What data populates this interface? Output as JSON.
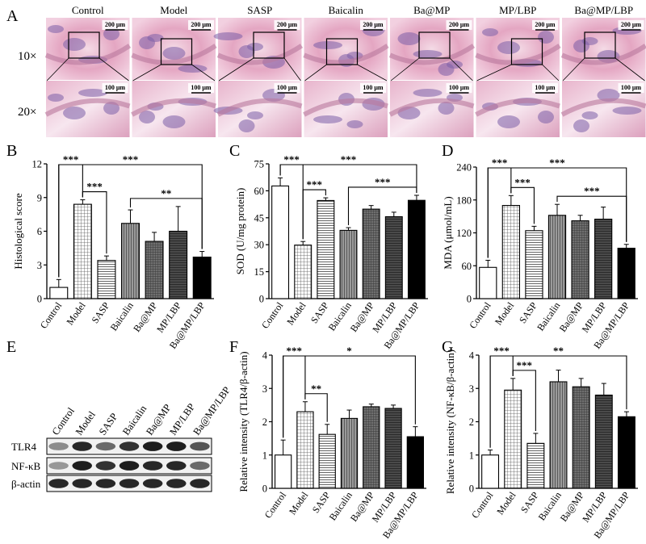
{
  "panel_a": {
    "letter": "A",
    "columns": [
      "Control",
      "Model",
      "SASP",
      "Baicalin",
      "Ba@MP",
      "MP/LBP",
      "Ba@MP/LBP"
    ],
    "row_labels": [
      "10×",
      "20×"
    ],
    "scale_10x": "200 μm",
    "scale_20x": "100 μm"
  },
  "blot": {
    "letter": "E",
    "columns": [
      "Control",
      "Model",
      "SASP",
      "Baicalin",
      "Ba@MP",
      "MP/LBP",
      "Ba@MP/LBP"
    ],
    "rows": [
      "TLR4",
      "NF-κB",
      "β-actin"
    ]
  },
  "colors": {
    "bar_border": "#000000",
    "background": "#ffffff",
    "tissue_pink": "#e6a8c0",
    "tissue_purple": "#7b5fa8"
  },
  "chart_data": [
    {
      "id": "B",
      "type": "bar",
      "title": "",
      "xlabel": "",
      "ylabel": "Histological score",
      "ylim": [
        0,
        12
      ],
      "yticks": [
        "0",
        "3",
        "6",
        "9",
        "12"
      ],
      "categories": [
        "Control",
        "Model",
        "SASP",
        "Baicalin",
        "Ba@MP",
        "MP/LBP",
        "Ba@MP/LBP"
      ],
      "values": [
        1.0,
        8.4,
        3.4,
        6.7,
        5.1,
        6.0,
        3.7
      ],
      "errors": [
        0.7,
        0.4,
        0.4,
        1.2,
        0.8,
        2.2,
        0.5
      ],
      "annotations": [
        {
          "from": 0,
          "to": 1,
          "label": "***"
        },
        {
          "from": 1,
          "to": 2,
          "label": "***"
        },
        {
          "from": 0,
          "to": 6,
          "label": "***"
        },
        {
          "from": 3,
          "to": 6,
          "label": "**"
        }
      ]
    },
    {
      "id": "C",
      "type": "bar",
      "title": "",
      "xlabel": "",
      "ylabel": "SOD (U/mg protein)",
      "ylim": [
        0,
        75
      ],
      "yticks": [
        "0",
        "15",
        "30",
        "45",
        "60",
        "75"
      ],
      "categories": [
        "Control",
        "Model",
        "SASP",
        "Baicalin",
        "Ba@MP",
        "MP/LBP",
        "Ba@MP/LBP"
      ],
      "values": [
        62.7,
        29.8,
        54.6,
        38.0,
        49.8,
        45.6,
        54.7
      ],
      "errors": [
        4.5,
        2.0,
        1.5,
        1.5,
        2.0,
        2.5,
        2.8
      ],
      "annotations": [
        {
          "from": 0,
          "to": 1,
          "label": "***"
        },
        {
          "from": 1,
          "to": 2,
          "label": "***"
        },
        {
          "from": 0,
          "to": 6,
          "label": "***"
        },
        {
          "from": 3,
          "to": 6,
          "label": "***"
        }
      ]
    },
    {
      "id": "D",
      "type": "bar",
      "title": "",
      "xlabel": "",
      "ylabel": "MDA (μmol/mL)",
      "ylim": [
        0,
        240
      ],
      "yticks": [
        "0",
        "60",
        "120",
        "180",
        "240"
      ],
      "categories": [
        "Control",
        "Model",
        "SASP",
        "Baicalin",
        "Ba@MP",
        "MP/LBP",
        "Ba@MP/LBP"
      ],
      "values": [
        57,
        170,
        124,
        152,
        142,
        145,
        92
      ],
      "errors": [
        13,
        18,
        8,
        20,
        10,
        22,
        7
      ],
      "annotations": [
        {
          "from": 0,
          "to": 1,
          "label": "***"
        },
        {
          "from": 1,
          "to": 2,
          "label": "***"
        },
        {
          "from": 0,
          "to": 6,
          "label": "***"
        },
        {
          "from": 3,
          "to": 6,
          "label": "***"
        }
      ]
    },
    {
      "id": "F",
      "type": "bar",
      "title": "",
      "xlabel": "",
      "ylabel": "Relative intensity (TLR4/β-actin)",
      "ylim": [
        0,
        4
      ],
      "yticks": [
        "0",
        "1",
        "2",
        "3",
        "4"
      ],
      "categories": [
        "Control",
        "Model",
        "SASP",
        "Baicalin",
        "Ba@MP",
        "MP/LBP",
        "Ba@MP/LBP"
      ],
      "values": [
        1.0,
        2.3,
        1.62,
        2.1,
        2.45,
        2.4,
        1.55
      ],
      "errors": [
        0.45,
        0.3,
        0.3,
        0.25,
        0.08,
        0.1,
        0.3
      ],
      "annotations": [
        {
          "from": 0,
          "to": 1,
          "label": "***"
        },
        {
          "from": 1,
          "to": 2,
          "label": "**"
        },
        {
          "from": 0,
          "to": 6,
          "label": "*"
        }
      ]
    },
    {
      "id": "G",
      "type": "bar",
      "title": "",
      "xlabel": "",
      "ylabel": "Relative intensity (NF-κB/β-actin)",
      "ylim": [
        0,
        4
      ],
      "yticks": [
        "0",
        "1",
        "2",
        "3",
        "4"
      ],
      "categories": [
        "Control",
        "Model",
        "SASP",
        "Baicalin",
        "Ba@MP",
        "MP/LBP",
        "Ba@MP/LBP"
      ],
      "values": [
        1.0,
        2.95,
        1.35,
        3.2,
        3.05,
        2.8,
        2.15
      ],
      "errors": [
        0.15,
        0.35,
        0.3,
        0.35,
        0.25,
        0.35,
        0.15
      ],
      "annotations": [
        {
          "from": 0,
          "to": 1,
          "label": "***"
        },
        {
          "from": 1,
          "to": 2,
          "label": "***"
        },
        {
          "from": 0,
          "to": 6,
          "label": "**"
        }
      ]
    }
  ]
}
